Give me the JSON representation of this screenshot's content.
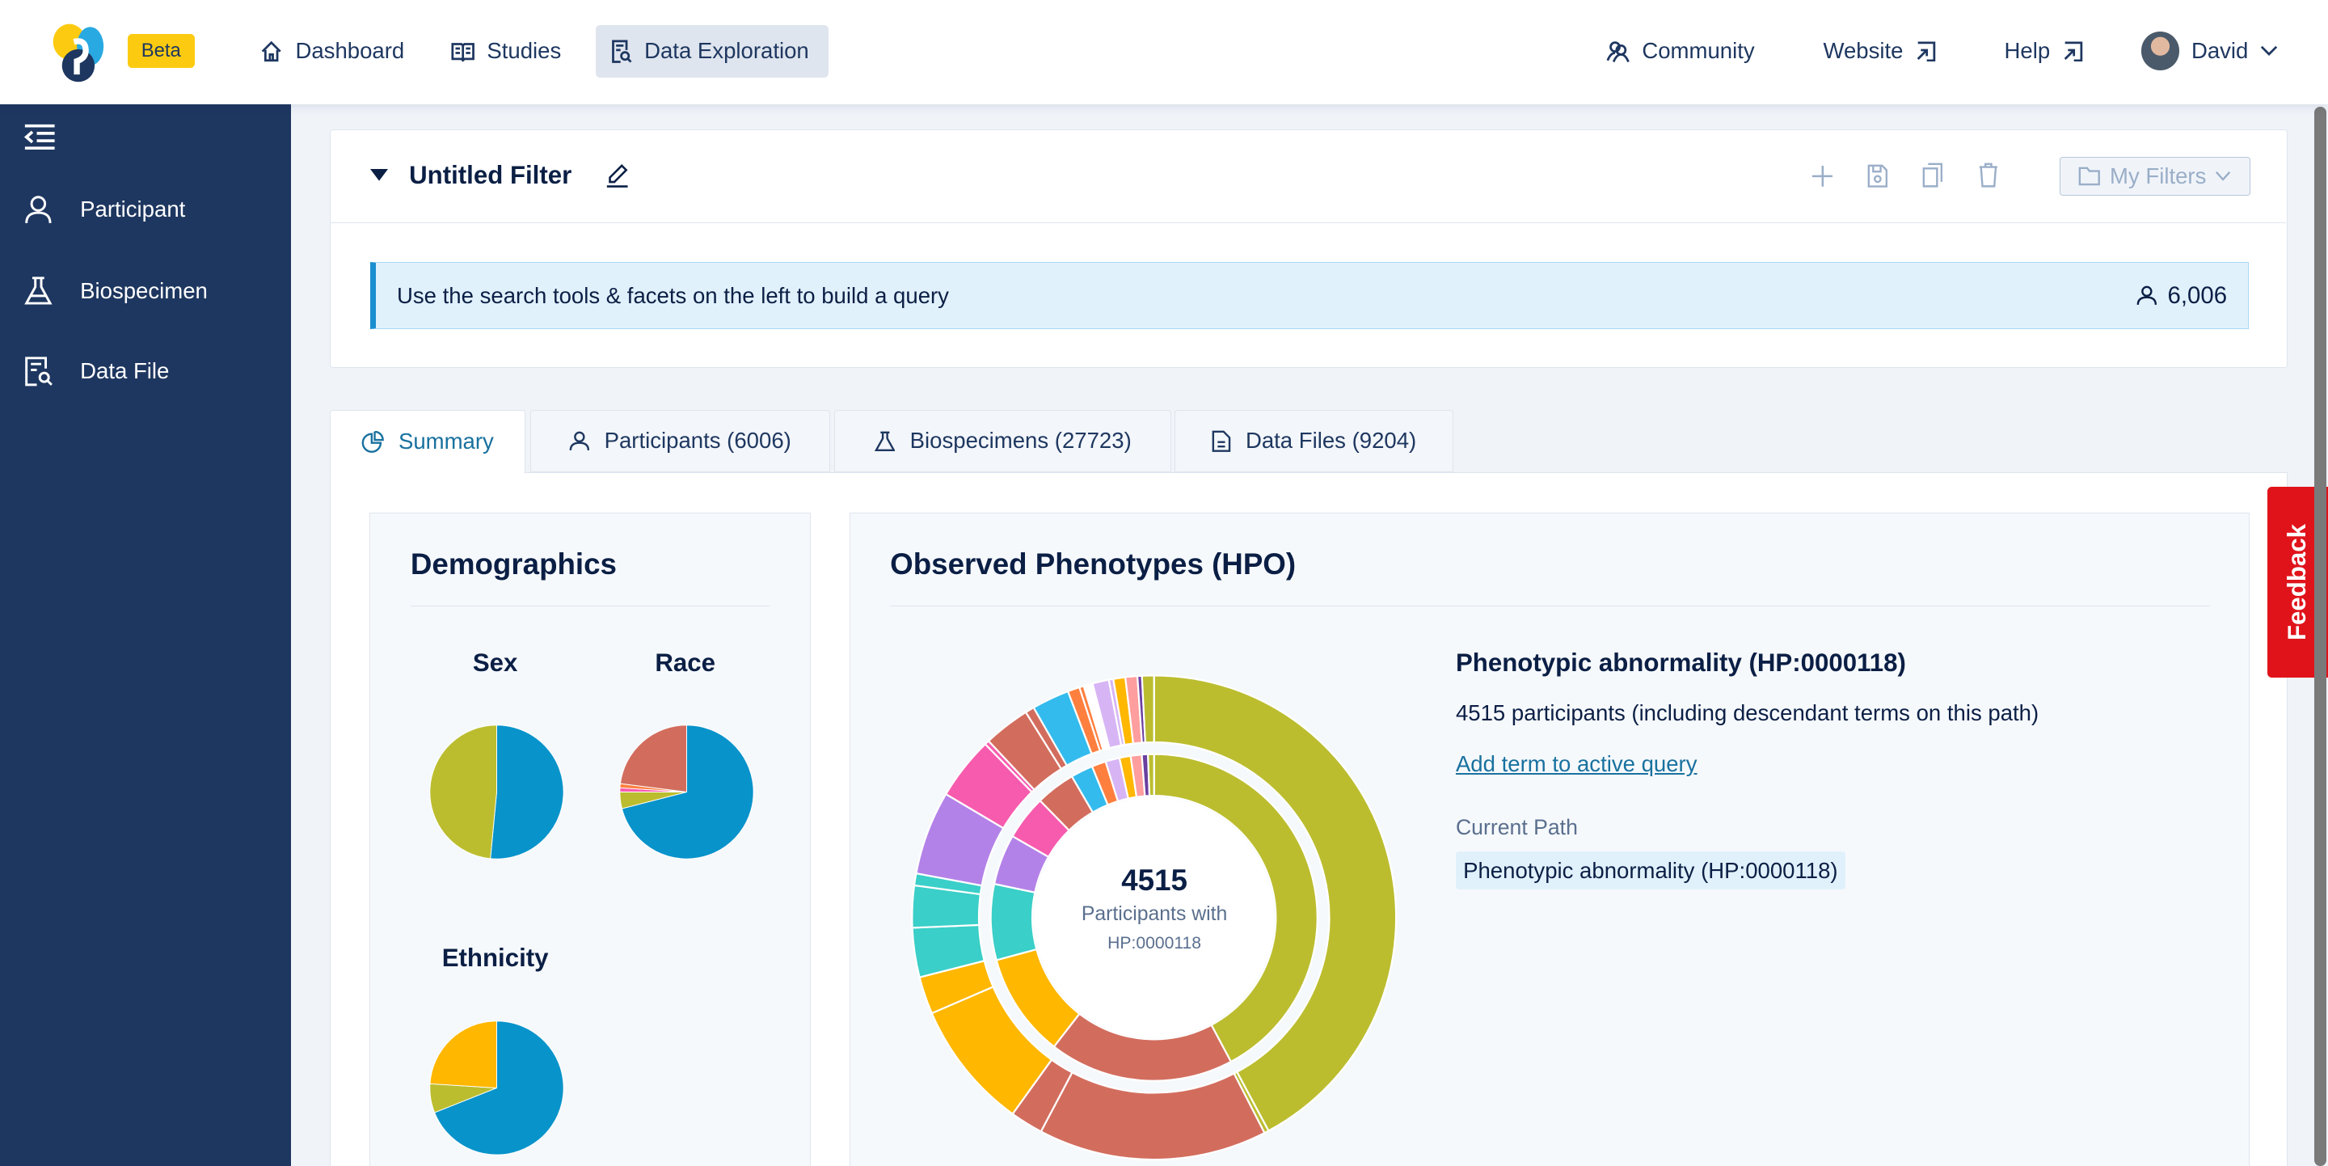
{
  "header": {
    "beta_label": "Beta",
    "nav": [
      {
        "label": "Dashboard",
        "icon": "home-icon"
      },
      {
        "label": "Studies",
        "icon": "book-icon"
      },
      {
        "label": "Data Exploration",
        "icon": "file-search-icon",
        "active": true
      }
    ],
    "right": [
      {
        "label": "Community",
        "icon": "users-icon"
      },
      {
        "label": "Website",
        "icon": "external-link-icon"
      },
      {
        "label": "Help",
        "icon": "external-link-icon"
      }
    ],
    "user": "David"
  },
  "sidebar": {
    "items": [
      {
        "label": "Participant",
        "icon": "user-icon"
      },
      {
        "label": "Biospecimen",
        "icon": "flask-icon"
      },
      {
        "label": "Data File",
        "icon": "file-search-icon"
      }
    ]
  },
  "filter": {
    "title": "Untitled Filter",
    "my_filters_label": "My Filters",
    "info_text": "Use the search tools & facets on the left to build a query",
    "count": "6,006"
  },
  "tabs": [
    {
      "label": "Summary",
      "active": true
    },
    {
      "label": "Participants (6006)"
    },
    {
      "label": "Biospecimens (27723)"
    },
    {
      "label": "Data Files (9204)"
    }
  ],
  "feedback_label": "Feedback",
  "demographics": {
    "title": "Demographics",
    "sex_title": "Sex",
    "race_title": "Race",
    "ethnicity_title": "Ethnicity"
  },
  "phenotypes": {
    "title": "Observed Phenotypes (HPO)",
    "center_count": "4515",
    "center_label": "Participants with",
    "center_code": "HP:0000118",
    "detail_title": "Phenotypic abnormality (HP:0000118)",
    "detail_count": "4515 participants (including descendant terms on this path)",
    "add_link": "Add term to active query",
    "path_label": "Current Path",
    "path_item": "Phenotypic abnormality (HP:0000118)"
  },
  "colors": {
    "navy": "#1e3760",
    "accent": "#19719f",
    "feedback": "#e0131b",
    "olive": "#bbbd2f",
    "red": "#d26d5e",
    "yellow": "#ffb700",
    "teal": "#3acfc8",
    "purple": "#b382e8",
    "pink": "#f75bae",
    "blue": "#33bbee",
    "orange": "#ff7f3f",
    "lavender": "#d7b5f5",
    "pie_blue": "#0893cb"
  },
  "chart_data": [
    {
      "type": "pie",
      "name": "sex",
      "slices": [
        {
          "color": "#0893cb",
          "share_pct": 51.5
        },
        {
          "color": "#bbbd2f",
          "share_pct": 48.5
        }
      ]
    },
    {
      "type": "pie",
      "name": "race",
      "slices": [
        {
          "color": "#0893cb",
          "share_pct": 71
        },
        {
          "color": "#bbbd2f",
          "share_pct": 4
        },
        {
          "color": "#f75bae",
          "share_pct": 1
        },
        {
          "color": "#ff7f3f",
          "share_pct": 1
        },
        {
          "color": "#d26d5e",
          "share_pct": 23
        }
      ]
    },
    {
      "type": "pie",
      "name": "ethnicity",
      "slices": [
        {
          "color": "#0893cb",
          "share_pct": 69
        },
        {
          "color": "#bbbd2f",
          "share_pct": 7
        },
        {
          "color": "#ffb700",
          "share_pct": 24
        }
      ]
    },
    {
      "type": "sunburst",
      "name": "phenotypes",
      "total": 4515,
      "inner": [
        {
          "c": "#bbbd2f",
          "v": 42.2
        },
        {
          "c": "#d26d5e",
          "v": 18.3
        },
        {
          "c": "#ffb700",
          "v": 10.3
        },
        {
          "c": "#3acfc8",
          "v": 7.5
        },
        {
          "c": "#b382e8",
          "v": 5
        },
        {
          "c": "#f75bae",
          "v": 4.4
        },
        {
          "c": "#d26d5e",
          "v": 3.9
        },
        {
          "c": "#33bbee",
          "v": 2.2
        },
        {
          "c": "#ff7f3f",
          "v": 1.4
        },
        {
          "c": "#d7b5f5",
          "v": 1.4
        },
        {
          "c": "#ffb700",
          "v": 1.1
        },
        {
          "c": "#ff9e9e",
          "v": 1.1
        },
        {
          "c": "#6b3fa0",
          "v": 0.6
        },
        {
          "c": "#bbbd2f",
          "v": 0.6
        }
      ],
      "outer": [
        {
          "c": "#bbbd2f",
          "v": 42.2
        },
        {
          "c": "#bbbd2f",
          "v": 0.3
        },
        {
          "c": "#d26d5e",
          "v": 15.3
        },
        {
          "c": "#d26d5e",
          "v": 2.2
        },
        {
          "c": "#ffb700",
          "v": 8.6
        },
        {
          "c": "#ffb700",
          "v": 2.5
        },
        {
          "c": "#3acfc8",
          "v": 3.3
        },
        {
          "c": "#3acfc8",
          "v": 2.8
        },
        {
          "c": "#3acfc8",
          "v": 0.8
        },
        {
          "c": "#b382e8",
          "v": 5.6
        },
        {
          "c": "#f75bae",
          "v": 4.2
        },
        {
          "c": "#f75bae",
          "v": 0.3
        },
        {
          "c": "#d26d5e",
          "v": 3.1
        },
        {
          "c": "#d26d5e",
          "v": 0.6
        },
        {
          "c": "#33bbee",
          "v": 2.5
        },
        {
          "c": "#ff7f3f",
          "v": 0.8
        },
        {
          "c": "#ff7f3f",
          "v": 0.3
        },
        {
          "c": "#ffffff",
          "v": 0.6
        },
        {
          "c": "#d7b5f5",
          "v": 1.1
        },
        {
          "c": "#d7b5f5",
          "v": 0.3
        },
        {
          "c": "#ffb700",
          "v": 0.8
        },
        {
          "c": "#ff9e9e",
          "v": 0.8
        },
        {
          "c": "#6b3fa0",
          "v": 0.3
        },
        {
          "c": "#bbbd2f",
          "v": 0.8
        }
      ]
    }
  ]
}
